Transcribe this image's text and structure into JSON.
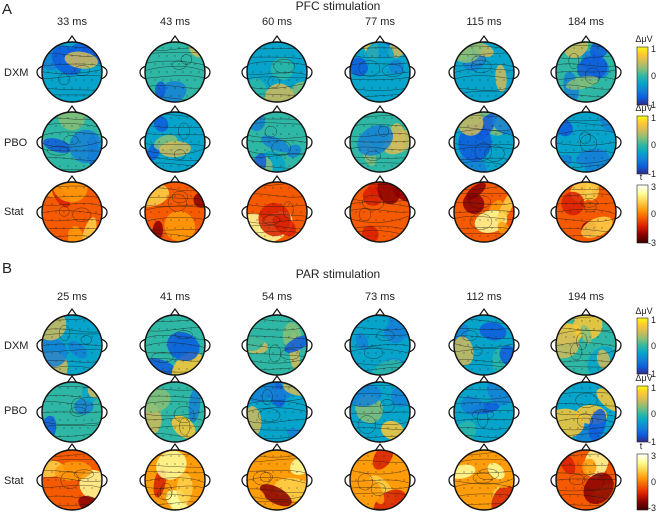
{
  "figure": {
    "panels": [
      {
        "letter": "A",
        "title": "PFC stimulation",
        "times": [
          "33 ms",
          "43 ms",
          "60 ms",
          "77 ms",
          "115 ms",
          "184 ms"
        ],
        "rows": [
          "DXM",
          "PBO",
          "Stat"
        ]
      },
      {
        "letter": "B",
        "title": "PAR stimulation",
        "times": [
          "25 ms",
          "41 ms",
          "54 ms",
          "73 ms",
          "112 ms",
          "194 ms"
        ],
        "rows": [
          "DXM",
          "PBO",
          "Stat"
        ]
      }
    ],
    "colorbars": {
      "amp": {
        "label": "Δμ",
        "label_unit": "V",
        "max": "1",
        "mid": "0",
        "min": "-1"
      },
      "stat": {
        "label": "t",
        "max": "3",
        "mid": "0",
        "min": "-3"
      }
    },
    "colors": {
      "parula": [
        "#352a87",
        "#0f5cdd",
        "#1481d6",
        "#06a4ca",
        "#2eb7a4",
        "#87bf77",
        "#d1bb59",
        "#fec832",
        "#f9fb0e"
      ],
      "hot": [
        "#3a0000",
        "#8a0000",
        "#d81e00",
        "#f65a00",
        "#ff9c0a",
        "#ffd24a",
        "#ffff9c",
        "#ffffff"
      ]
    }
  }
}
